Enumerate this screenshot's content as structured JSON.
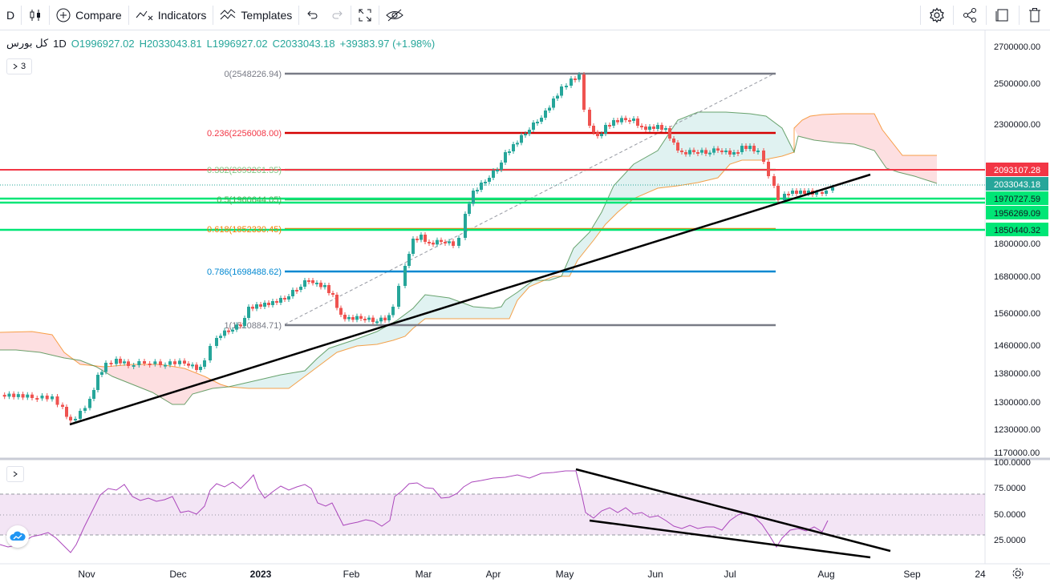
{
  "toolbar": {
    "interval": "D",
    "compare_label": "Compare",
    "indicators_label": "Indicators",
    "templates_label": "Templates"
  },
  "legend": {
    "symbol": "کل بورس",
    "interval": "1D",
    "open": "O1996927.02",
    "high": "H2033043.81",
    "low": "L1996927.02",
    "close": "C2033043.18",
    "change": "+39383.97 (+1.98%)",
    "collapse_count": "3"
  },
  "price_axis": {
    "ticks": [
      "2700000.00",
      "2500000.00",
      "2300000.00",
      "1800000.00",
      "1680000.00",
      "1560000.00",
      "1460000.00",
      "1380000.00",
      "1300000.00",
      "1230000.00",
      "1170000.00"
    ],
    "badges": [
      {
        "label": "2093107.28",
        "color": "#f23645"
      },
      {
        "label": "2033043.18",
        "color": "#26a69a"
      },
      {
        "label": "1970727.59",
        "color": "#00e676"
      },
      {
        "label": "1956269.09",
        "color": "#00e676"
      },
      {
        "label": "1850440.32",
        "color": "#00e676"
      }
    ]
  },
  "rsi_axis": {
    "ticks": [
      "100.0000",
      "75.0000",
      "50.0000",
      "25.0000"
    ]
  },
  "time_axis": {
    "labels": [
      "Nov",
      "Dec",
      "2023",
      "Feb",
      "Mar",
      "Apr",
      "May",
      "Jun",
      "Jul",
      "Aug",
      "Sep",
      "24"
    ]
  },
  "fib": [
    {
      "label": "0(2548226.94)",
      "color": "#787b86"
    },
    {
      "label": "0.236(2256008.00)",
      "color": "#f23645"
    },
    {
      "label": "0.382(2093261.35)",
      "color": "#81c784"
    },
    {
      "label": "0.5(1960644.05)",
      "color": "#4caf50"
    },
    {
      "label": "0.618(1852330.45)",
      "color": "#f57c00"
    },
    {
      "label": "0.786(1698488.62)",
      "color": "#0288d1"
    },
    {
      "label": "1(1520884.71)",
      "color": "#787b86"
    }
  ]
}
